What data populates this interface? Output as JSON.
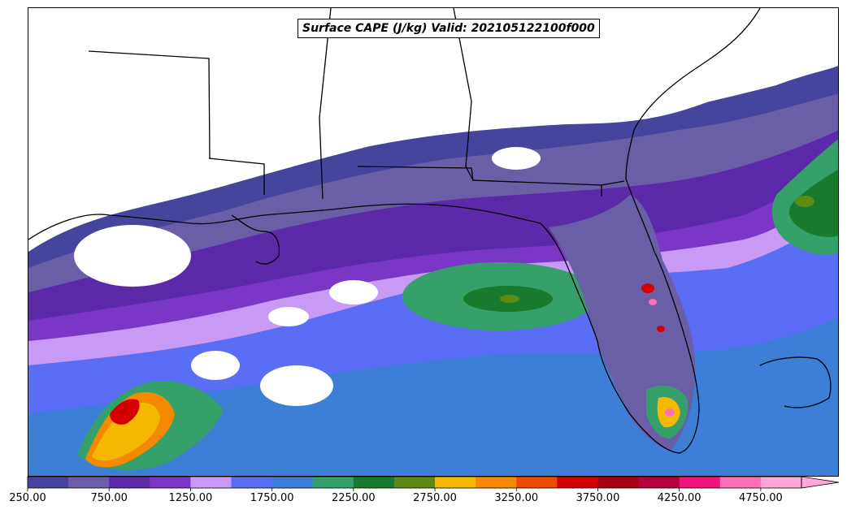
{
  "title": "Surface CAPE (J/kg) Valid: 202105122100f000",
  "colorbar": {
    "min": 250,
    "max": 5000,
    "step": 250,
    "extend": "max",
    "tick_labels": [
      "250.00",
      "750.00",
      "1250.00",
      "1750.00",
      "2250.00",
      "2750.00",
      "3250.00",
      "3750.00",
      "4250.00",
      "4750.00"
    ],
    "colors": [
      "#45459e",
      "#6a5fa6",
      "#5b2aa8",
      "#7a36c4",
      "#c79af5",
      "#5a6df5",
      "#3d7fd6",
      "#36a06a",
      "#197a2e",
      "#5d8a12",
      "#f5b800",
      "#f58a00",
      "#f04a00",
      "#d40000",
      "#a80010",
      "#b8003c",
      "#f0137a",
      "#ff6fb4",
      "#ffa8d8"
    ]
  },
  "map": {
    "variable": "Surface CAPE",
    "units": "J/kg",
    "region": "Gulf of Mexico / Florida",
    "background_color": "#ffffff",
    "coastline_color": "#000000"
  }
}
